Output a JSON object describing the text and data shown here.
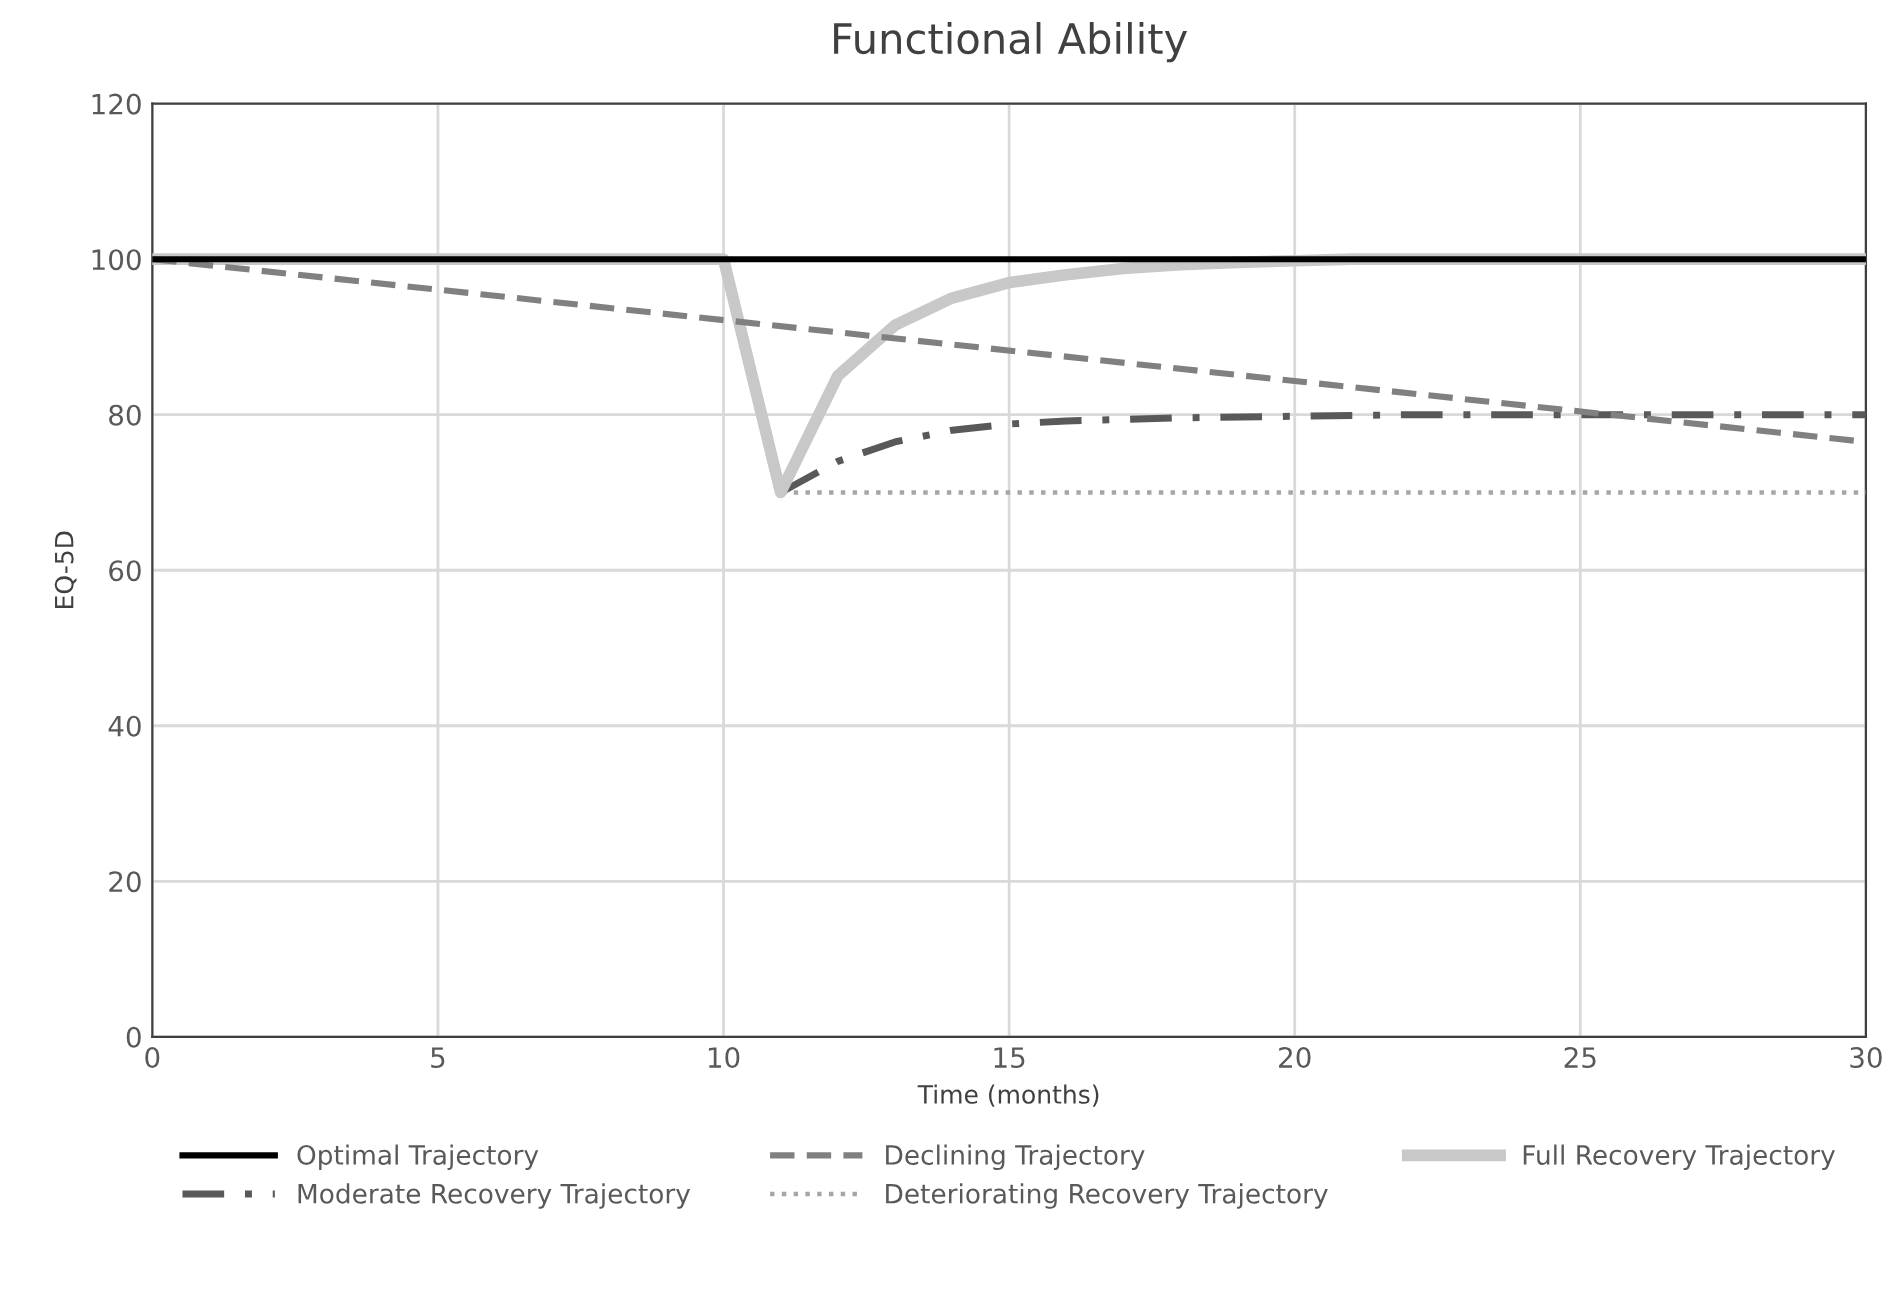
{
  "chart_data": {
    "type": "line",
    "title": "Functional Ability",
    "xlabel": "Time (months)",
    "ylabel": "EQ-5D",
    "xlim": [
      0,
      30
    ],
    "xticks": [
      0,
      5,
      10,
      15,
      20,
      25,
      30
    ],
    "ylim": [
      0,
      120
    ],
    "yticks": [
      0,
      20,
      40,
      60,
      80,
      100,
      120
    ],
    "grid": true,
    "legend": "bottom",
    "marker": "none",
    "series": [
      {
        "name": "Optimal Trajectory",
        "color": "#000000",
        "line_style": "solid",
        "x": [
          0,
          30
        ],
        "values": [
          100,
          100
        ]
      },
      {
        "name": "Declining Trajectory",
        "color": "#808080",
        "line_style": "dashed",
        "x": [
          0,
          30
        ],
        "values": [
          100,
          76.5
        ]
      },
      {
        "name": "Full Recovery Trajectory",
        "color": "#c8c8c8",
        "line_style": "solid",
        "x": [
          0,
          10,
          11,
          12,
          13,
          14,
          15,
          16,
          17,
          18,
          19,
          20,
          21,
          30
        ],
        "values": [
          100,
          100,
          70,
          85,
          91.5,
          95,
          97,
          98,
          98.8,
          99.3,
          99.6,
          99.8,
          100,
          100
        ]
      },
      {
        "name": "Moderate Recovery Trajectory",
        "color": "#595959",
        "line_style": "dashdot",
        "x": [
          0,
          10,
          11,
          12,
          13,
          14,
          15,
          16,
          18,
          20,
          22,
          30
        ],
        "values": [
          100,
          100,
          70,
          74,
          76.5,
          78,
          78.8,
          79.2,
          79.6,
          79.8,
          80,
          80
        ]
      },
      {
        "name": "Deteriorating Recovery Trajectory",
        "color": "#a6a6a6",
        "line_style": "dotted",
        "x": [
          0,
          10,
          11,
          30
        ],
        "values": [
          100,
          100,
          70,
          70
        ]
      }
    ]
  }
}
